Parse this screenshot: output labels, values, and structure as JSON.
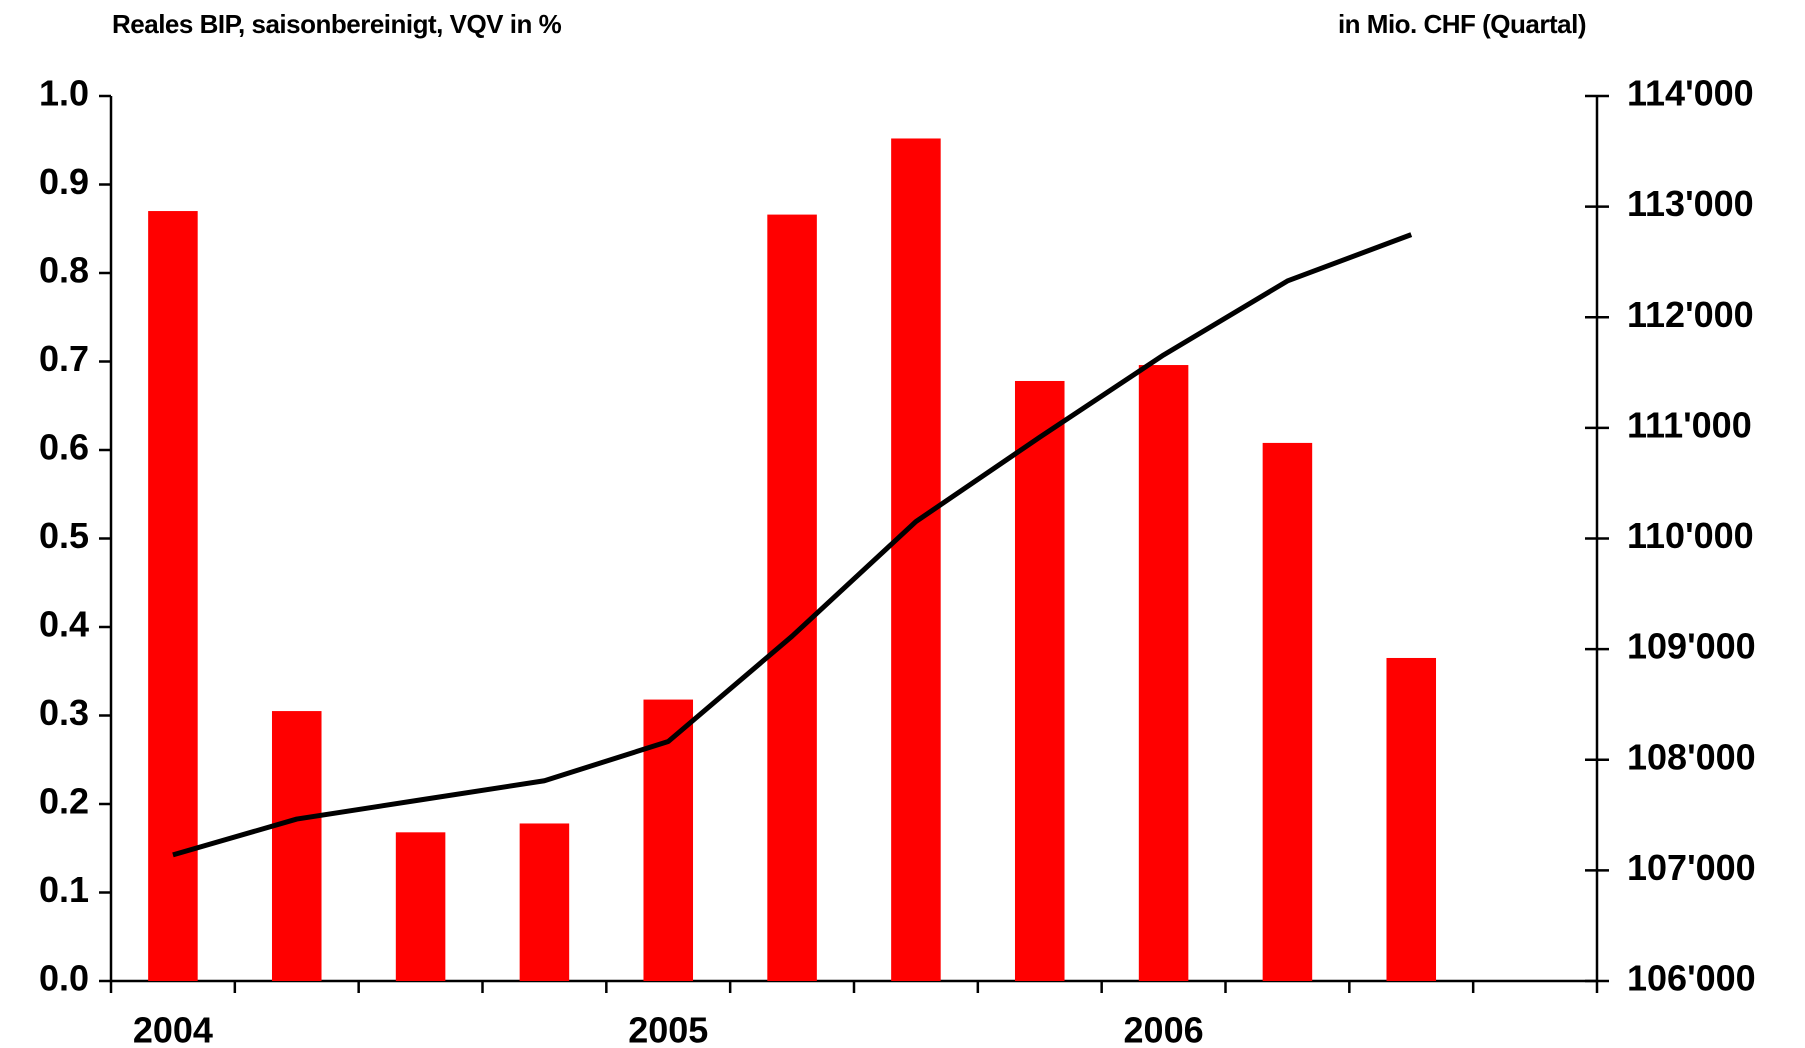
{
  "chart_data": {
    "type": "bar_line",
    "title": "Reales BIP, saisonbereinigt, VQV in %",
    "y2_title": "in Mio. CHF (Quartal)",
    "categories": [
      "2004",
      null,
      null,
      null,
      "2005",
      null,
      null,
      null,
      "2006",
      null,
      null,
      null
    ],
    "series": [
      {
        "type": "bar",
        "color": "#ff0000",
        "values": [
          0.87,
          0.305,
          0.168,
          0.178,
          0.318,
          0.866,
          0.952,
          0.678,
          0.696,
          0.608,
          0.365,
          null
        ]
      },
      {
        "type": "line",
        "axis": "y2",
        "color": "#000000",
        "values": [
          107140,
          107464,
          107637,
          107810,
          108165,
          109117,
          110153,
          110916,
          111659,
          112328,
          112747,
          null
        ]
      }
    ],
    "ylim": [
      0,
      1.0
    ],
    "yticks": [
      {
        "value": 0,
        "label": "0.0"
      },
      0.1,
      0.2,
      0.3,
      0.4,
      0.5,
      0.6,
      0.7,
      0.8,
      0.9,
      {
        "value": 1.0,
        "label": "1.0"
      }
    ],
    "y2lim": [
      106000,
      114000
    ],
    "y2ticks": [
      {
        "value": 106000,
        "label": "106'000"
      },
      {
        "value": 107000,
        "label": "107'000"
      },
      {
        "value": 108000,
        "label": "108'000"
      },
      {
        "value": 109000,
        "label": "109'000"
      },
      {
        "value": 110000,
        "label": "110'000"
      },
      {
        "value": 111000,
        "label": "111'000"
      },
      {
        "value": 112000,
        "label": "112'000"
      },
      {
        "value": 113000,
        "label": "113'000"
      },
      {
        "value": 114000,
        "label": "114'000"
      }
    ]
  }
}
